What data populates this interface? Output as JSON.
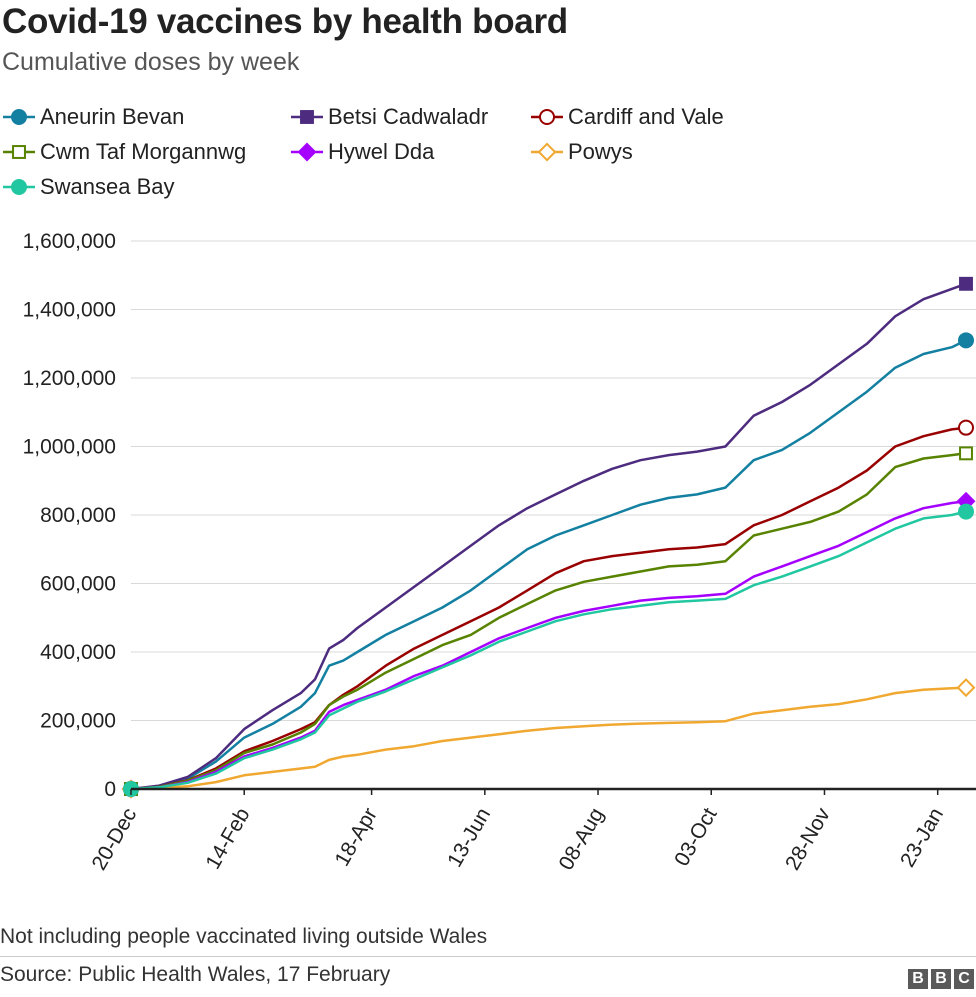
{
  "header": {
    "title": "Covid-19 vaccines by health board",
    "subtitle": "Cumulative doses by week"
  },
  "footer": {
    "note": "Not including people vaccinated living outside Wales",
    "source": "Source: Public Health Wales, 17 February",
    "logo_letters": [
      "B",
      "B",
      "C"
    ]
  },
  "chart_data": {
    "type": "line",
    "title": "Covid-19 vaccines by health board",
    "subtitle": "Cumulative doses by week",
    "xlabel": "",
    "ylabel": "",
    "x_start": "2020-12-20",
    "x_end": "2022-02-06",
    "x_ticks": [
      {
        "date": "2020-12-20",
        "label": "20-Dec"
      },
      {
        "date": "2021-02-14",
        "label": "14-Feb"
      },
      {
        "date": "2021-04-18",
        "label": "18-Apr"
      },
      {
        "date": "2021-06-13",
        "label": "13-Jun"
      },
      {
        "date": "2021-08-08",
        "label": "08-Aug"
      },
      {
        "date": "2021-10-03",
        "label": "03-Oct"
      },
      {
        "date": "2021-11-28",
        "label": "28-Nov"
      },
      {
        "date": "2022-01-23",
        "label": "23-Jan"
      }
    ],
    "ylim": [
      0,
      1600000
    ],
    "y_ticks": [
      {
        "value": 0,
        "label": "0"
      },
      {
        "value": 200000,
        "label": "200,000"
      },
      {
        "value": 400000,
        "label": "400,000"
      },
      {
        "value": 600000,
        "label": "600,000"
      },
      {
        "value": 800000,
        "label": "800,000"
      },
      {
        "value": 1000000,
        "label": "1,000,000"
      },
      {
        "value": 1200000,
        "label": "1,200,000"
      },
      {
        "value": 1400000,
        "label": "1,400,000"
      },
      {
        "value": 1600000,
        "label": "1,600,000"
      }
    ],
    "grid": true,
    "legend_position": "top",
    "series": [
      {
        "name": "Aneurin Bevan",
        "color": "#1380a1",
        "marker": "circle",
        "filled": true,
        "points": [
          [
            "2020-12-20",
            0
          ],
          [
            "2021-01-03",
            8000
          ],
          [
            "2021-01-17",
            30000
          ],
          [
            "2021-01-31",
            80000
          ],
          [
            "2021-02-14",
            150000
          ],
          [
            "2021-02-28",
            190000
          ],
          [
            "2021-03-14",
            240000
          ],
          [
            "2021-03-21",
            280000
          ],
          [
            "2021-03-28",
            360000
          ],
          [
            "2021-04-04",
            375000
          ],
          [
            "2021-04-11",
            400000
          ],
          [
            "2021-04-25",
            450000
          ],
          [
            "2021-05-09",
            490000
          ],
          [
            "2021-05-23",
            530000
          ],
          [
            "2021-06-06",
            580000
          ],
          [
            "2021-06-20",
            640000
          ],
          [
            "2021-07-04",
            700000
          ],
          [
            "2021-07-18",
            740000
          ],
          [
            "2021-08-01",
            770000
          ],
          [
            "2021-08-15",
            800000
          ],
          [
            "2021-08-29",
            830000
          ],
          [
            "2021-09-12",
            850000
          ],
          [
            "2021-09-26",
            860000
          ],
          [
            "2021-10-10",
            880000
          ],
          [
            "2021-10-24",
            960000
          ],
          [
            "2021-11-07",
            990000
          ],
          [
            "2021-11-21",
            1040000
          ],
          [
            "2021-12-05",
            1100000
          ],
          [
            "2021-12-19",
            1160000
          ],
          [
            "2022-01-02",
            1230000
          ],
          [
            "2022-01-16",
            1270000
          ],
          [
            "2022-01-30",
            1290000
          ],
          [
            "2022-02-06",
            1310000
          ]
        ]
      },
      {
        "name": "Betsi Cadwaladr",
        "color": "#4d2c7f",
        "marker": "square",
        "filled": true,
        "points": [
          [
            "2020-12-20",
            0
          ],
          [
            "2021-01-03",
            10000
          ],
          [
            "2021-01-17",
            35000
          ],
          [
            "2021-01-31",
            90000
          ],
          [
            "2021-02-14",
            175000
          ],
          [
            "2021-02-28",
            230000
          ],
          [
            "2021-03-14",
            280000
          ],
          [
            "2021-03-21",
            320000
          ],
          [
            "2021-03-28",
            410000
          ],
          [
            "2021-04-04",
            435000
          ],
          [
            "2021-04-11",
            470000
          ],
          [
            "2021-04-25",
            530000
          ],
          [
            "2021-05-09",
            590000
          ],
          [
            "2021-05-23",
            650000
          ],
          [
            "2021-06-06",
            710000
          ],
          [
            "2021-06-20",
            770000
          ],
          [
            "2021-07-04",
            820000
          ],
          [
            "2021-07-18",
            860000
          ],
          [
            "2021-08-01",
            900000
          ],
          [
            "2021-08-15",
            935000
          ],
          [
            "2021-08-29",
            960000
          ],
          [
            "2021-09-12",
            975000
          ],
          [
            "2021-09-26",
            985000
          ],
          [
            "2021-10-10",
            1000000
          ],
          [
            "2021-10-24",
            1090000
          ],
          [
            "2021-11-07",
            1130000
          ],
          [
            "2021-11-21",
            1180000
          ],
          [
            "2021-12-05",
            1240000
          ],
          [
            "2021-12-19",
            1300000
          ],
          [
            "2022-01-02",
            1380000
          ],
          [
            "2022-01-16",
            1430000
          ],
          [
            "2022-01-30",
            1460000
          ],
          [
            "2022-02-06",
            1475000
          ]
        ]
      },
      {
        "name": "Cardiff and Vale",
        "color": "#990000",
        "marker": "circle",
        "filled": false,
        "points": [
          [
            "2020-12-20",
            0
          ],
          [
            "2021-01-03",
            6000
          ],
          [
            "2021-01-17",
            25000
          ],
          [
            "2021-01-31",
            60000
          ],
          [
            "2021-02-14",
            110000
          ],
          [
            "2021-02-28",
            140000
          ],
          [
            "2021-03-14",
            175000
          ],
          [
            "2021-03-21",
            195000
          ],
          [
            "2021-03-28",
            245000
          ],
          [
            "2021-04-04",
            275000
          ],
          [
            "2021-04-11",
            300000
          ],
          [
            "2021-04-25",
            360000
          ],
          [
            "2021-05-09",
            410000
          ],
          [
            "2021-05-23",
            450000
          ],
          [
            "2021-06-06",
            490000
          ],
          [
            "2021-06-20",
            530000
          ],
          [
            "2021-07-04",
            580000
          ],
          [
            "2021-07-18",
            630000
          ],
          [
            "2021-08-01",
            665000
          ],
          [
            "2021-08-15",
            680000
          ],
          [
            "2021-08-29",
            690000
          ],
          [
            "2021-09-12",
            700000
          ],
          [
            "2021-09-26",
            705000
          ],
          [
            "2021-10-10",
            715000
          ],
          [
            "2021-10-24",
            770000
          ],
          [
            "2021-11-07",
            800000
          ],
          [
            "2021-11-21",
            840000
          ],
          [
            "2021-12-05",
            880000
          ],
          [
            "2021-12-19",
            930000
          ],
          [
            "2022-01-02",
            1000000
          ],
          [
            "2022-01-16",
            1030000
          ],
          [
            "2022-01-30",
            1050000
          ],
          [
            "2022-02-06",
            1055000
          ]
        ]
      },
      {
        "name": "Cwm Taf Morgannwg",
        "color": "#588300",
        "marker": "square",
        "filled": false,
        "points": [
          [
            "2020-12-20",
            0
          ],
          [
            "2021-01-03",
            6000
          ],
          [
            "2021-01-17",
            24000
          ],
          [
            "2021-01-31",
            55000
          ],
          [
            "2021-02-14",
            105000
          ],
          [
            "2021-02-28",
            130000
          ],
          [
            "2021-03-14",
            165000
          ],
          [
            "2021-03-21",
            190000
          ],
          [
            "2021-03-28",
            245000
          ],
          [
            "2021-04-04",
            270000
          ],
          [
            "2021-04-11",
            290000
          ],
          [
            "2021-04-25",
            340000
          ],
          [
            "2021-05-09",
            380000
          ],
          [
            "2021-05-23",
            420000
          ],
          [
            "2021-06-06",
            450000
          ],
          [
            "2021-06-20",
            500000
          ],
          [
            "2021-07-04",
            540000
          ],
          [
            "2021-07-18",
            580000
          ],
          [
            "2021-08-01",
            605000
          ],
          [
            "2021-08-15",
            620000
          ],
          [
            "2021-08-29",
            635000
          ],
          [
            "2021-09-12",
            650000
          ],
          [
            "2021-09-26",
            655000
          ],
          [
            "2021-10-10",
            665000
          ],
          [
            "2021-10-24",
            740000
          ],
          [
            "2021-11-07",
            760000
          ],
          [
            "2021-11-21",
            780000
          ],
          [
            "2021-12-05",
            810000
          ],
          [
            "2021-12-19",
            860000
          ],
          [
            "2022-01-02",
            940000
          ],
          [
            "2022-01-16",
            965000
          ],
          [
            "2022-01-30",
            975000
          ],
          [
            "2022-02-06",
            980000
          ]
        ]
      },
      {
        "name": "Hywel Dda",
        "color": "#a500ff",
        "marker": "diamond",
        "filled": true,
        "points": [
          [
            "2020-12-20",
            0
          ],
          [
            "2021-01-03",
            5000
          ],
          [
            "2021-01-17",
            20000
          ],
          [
            "2021-01-31",
            50000
          ],
          [
            "2021-02-14",
            95000
          ],
          [
            "2021-02-28",
            120000
          ],
          [
            "2021-03-14",
            150000
          ],
          [
            "2021-03-21",
            170000
          ],
          [
            "2021-03-28",
            225000
          ],
          [
            "2021-04-04",
            245000
          ],
          [
            "2021-04-11",
            260000
          ],
          [
            "2021-04-25",
            290000
          ],
          [
            "2021-05-09",
            330000
          ],
          [
            "2021-05-23",
            360000
          ],
          [
            "2021-06-06",
            400000
          ],
          [
            "2021-06-20",
            440000
          ],
          [
            "2021-07-04",
            470000
          ],
          [
            "2021-07-18",
            500000
          ],
          [
            "2021-08-01",
            520000
          ],
          [
            "2021-08-15",
            535000
          ],
          [
            "2021-08-29",
            550000
          ],
          [
            "2021-09-12",
            558000
          ],
          [
            "2021-09-26",
            563000
          ],
          [
            "2021-10-10",
            570000
          ],
          [
            "2021-10-24",
            620000
          ],
          [
            "2021-11-07",
            650000
          ],
          [
            "2021-11-21",
            680000
          ],
          [
            "2021-12-05",
            710000
          ],
          [
            "2021-12-19",
            750000
          ],
          [
            "2022-01-02",
            790000
          ],
          [
            "2022-01-16",
            820000
          ],
          [
            "2022-01-30",
            835000
          ],
          [
            "2022-02-06",
            840000
          ]
        ]
      },
      {
        "name": "Powys",
        "color": "#f0a830",
        "marker": "diamond",
        "filled": false,
        "points": [
          [
            "2020-12-20",
            0
          ],
          [
            "2021-01-03",
            2000
          ],
          [
            "2021-01-17",
            8000
          ],
          [
            "2021-01-31",
            20000
          ],
          [
            "2021-02-14",
            40000
          ],
          [
            "2021-02-28",
            50000
          ],
          [
            "2021-03-14",
            60000
          ],
          [
            "2021-03-21",
            65000
          ],
          [
            "2021-03-28",
            85000
          ],
          [
            "2021-04-04",
            95000
          ],
          [
            "2021-04-11",
            100000
          ],
          [
            "2021-04-25",
            115000
          ],
          [
            "2021-05-09",
            125000
          ],
          [
            "2021-05-23",
            140000
          ],
          [
            "2021-06-06",
            150000
          ],
          [
            "2021-06-20",
            160000
          ],
          [
            "2021-07-04",
            170000
          ],
          [
            "2021-07-18",
            178000
          ],
          [
            "2021-08-01",
            183000
          ],
          [
            "2021-08-15",
            188000
          ],
          [
            "2021-08-29",
            191000
          ],
          [
            "2021-09-12",
            193000
          ],
          [
            "2021-09-26",
            195000
          ],
          [
            "2021-10-10",
            198000
          ],
          [
            "2021-10-24",
            220000
          ],
          [
            "2021-11-07",
            230000
          ],
          [
            "2021-11-21",
            240000
          ],
          [
            "2021-12-05",
            248000
          ],
          [
            "2021-12-19",
            262000
          ],
          [
            "2022-01-02",
            280000
          ],
          [
            "2022-01-16",
            290000
          ],
          [
            "2022-01-30",
            294000
          ],
          [
            "2022-02-06",
            296000
          ]
        ]
      },
      {
        "name": "Swansea Bay",
        "color": "#21c7a0",
        "marker": "circle",
        "filled": true,
        "points": [
          [
            "2020-12-20",
            0
          ],
          [
            "2021-01-03",
            5000
          ],
          [
            "2021-01-17",
            18000
          ],
          [
            "2021-01-31",
            45000
          ],
          [
            "2021-02-14",
            90000
          ],
          [
            "2021-02-28",
            115000
          ],
          [
            "2021-03-14",
            145000
          ],
          [
            "2021-03-21",
            165000
          ],
          [
            "2021-03-28",
            215000
          ],
          [
            "2021-04-04",
            235000
          ],
          [
            "2021-04-11",
            255000
          ],
          [
            "2021-04-25",
            285000
          ],
          [
            "2021-05-09",
            320000
          ],
          [
            "2021-05-23",
            355000
          ],
          [
            "2021-06-06",
            390000
          ],
          [
            "2021-06-20",
            430000
          ],
          [
            "2021-07-04",
            460000
          ],
          [
            "2021-07-18",
            490000
          ],
          [
            "2021-08-01",
            510000
          ],
          [
            "2021-08-15",
            525000
          ],
          [
            "2021-08-29",
            535000
          ],
          [
            "2021-09-12",
            545000
          ],
          [
            "2021-09-26",
            550000
          ],
          [
            "2021-10-10",
            555000
          ],
          [
            "2021-10-24",
            595000
          ],
          [
            "2021-11-07",
            620000
          ],
          [
            "2021-11-21",
            650000
          ],
          [
            "2021-12-05",
            680000
          ],
          [
            "2021-12-19",
            720000
          ],
          [
            "2022-01-02",
            760000
          ],
          [
            "2022-01-16",
            790000
          ],
          [
            "2022-01-30",
            800000
          ],
          [
            "2022-02-06",
            810000
          ]
        ]
      }
    ]
  }
}
